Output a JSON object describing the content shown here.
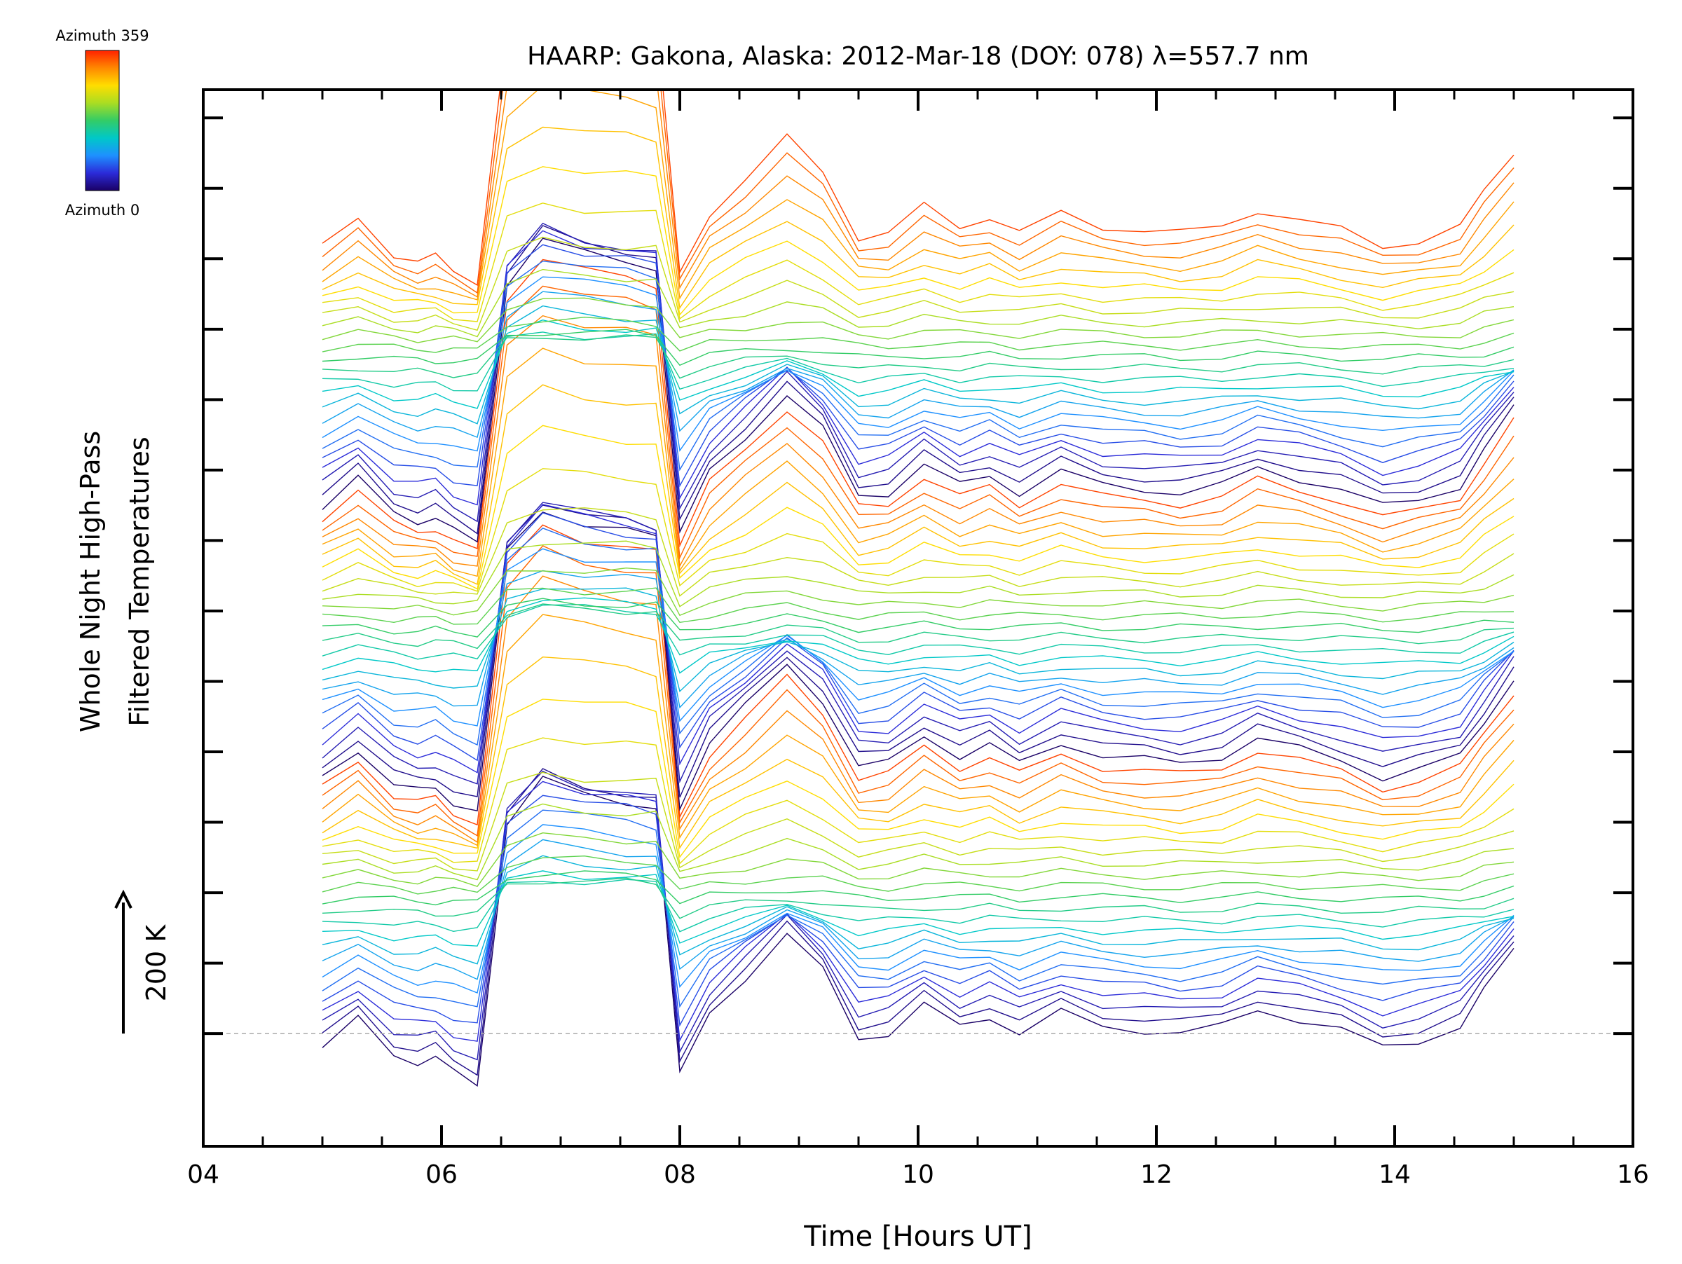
{
  "chart_data": {
    "type": "line",
    "title": "HAARP: Gakona,  Alaska: 2012-Mar-18 (DOY: 078) λ=557.7 nm",
    "xlabel": "Time [Hours UT]",
    "ylabel_line1": "Whole Night High-Pass",
    "ylabel_line2": "Filtered Temperatures",
    "scale_label": "200 K",
    "scale_k": 200,
    "xlim": [
      4,
      16
    ],
    "x_ticks": [
      "04",
      "06",
      "08",
      "10",
      "12",
      "14",
      "16"
    ],
    "y_range_k": [
      -160,
      1340
    ],
    "series_count": 72,
    "series_offset_k": 16,
    "colorbar": {
      "top_label": "Azimuth 359",
      "bottom_label": "Azimuth 0",
      "colormap": "rainbow",
      "colors": [
        "#1a0066",
        "#2b2bd9",
        "#1e90ff",
        "#00c8c8",
        "#33cc66",
        "#aadd22",
        "#ffdd00",
        "#ff8800",
        "#ff2200"
      ]
    },
    "baseline_k": 0,
    "x": [
      5.0,
      5.3,
      5.6,
      5.8,
      5.95,
      6.1,
      6.3,
      6.55,
      6.85,
      7.2,
      7.55,
      7.8,
      8.0,
      8.25,
      8.55,
      8.9,
      9.2,
      9.5,
      9.75,
      10.05,
      10.35,
      10.6,
      10.85,
      11.2,
      11.55,
      11.9,
      12.2,
      12.55,
      12.85,
      13.2,
      13.55,
      13.9,
      14.2,
      14.55,
      14.75,
      15.0
    ],
    "profile_k": [
      -20,
      20,
      -30,
      -40,
      -35,
      -55,
      -70,
      300,
      360,
      340,
      330,
      320,
      -60,
      30,
      80,
      140,
      90,
      -5,
      0,
      40,
      10,
      25,
      0,
      30,
      10,
      5,
      0,
      10,
      35,
      20,
      5,
      -20,
      -10,
      10,
      60,
      120
    ]
  }
}
